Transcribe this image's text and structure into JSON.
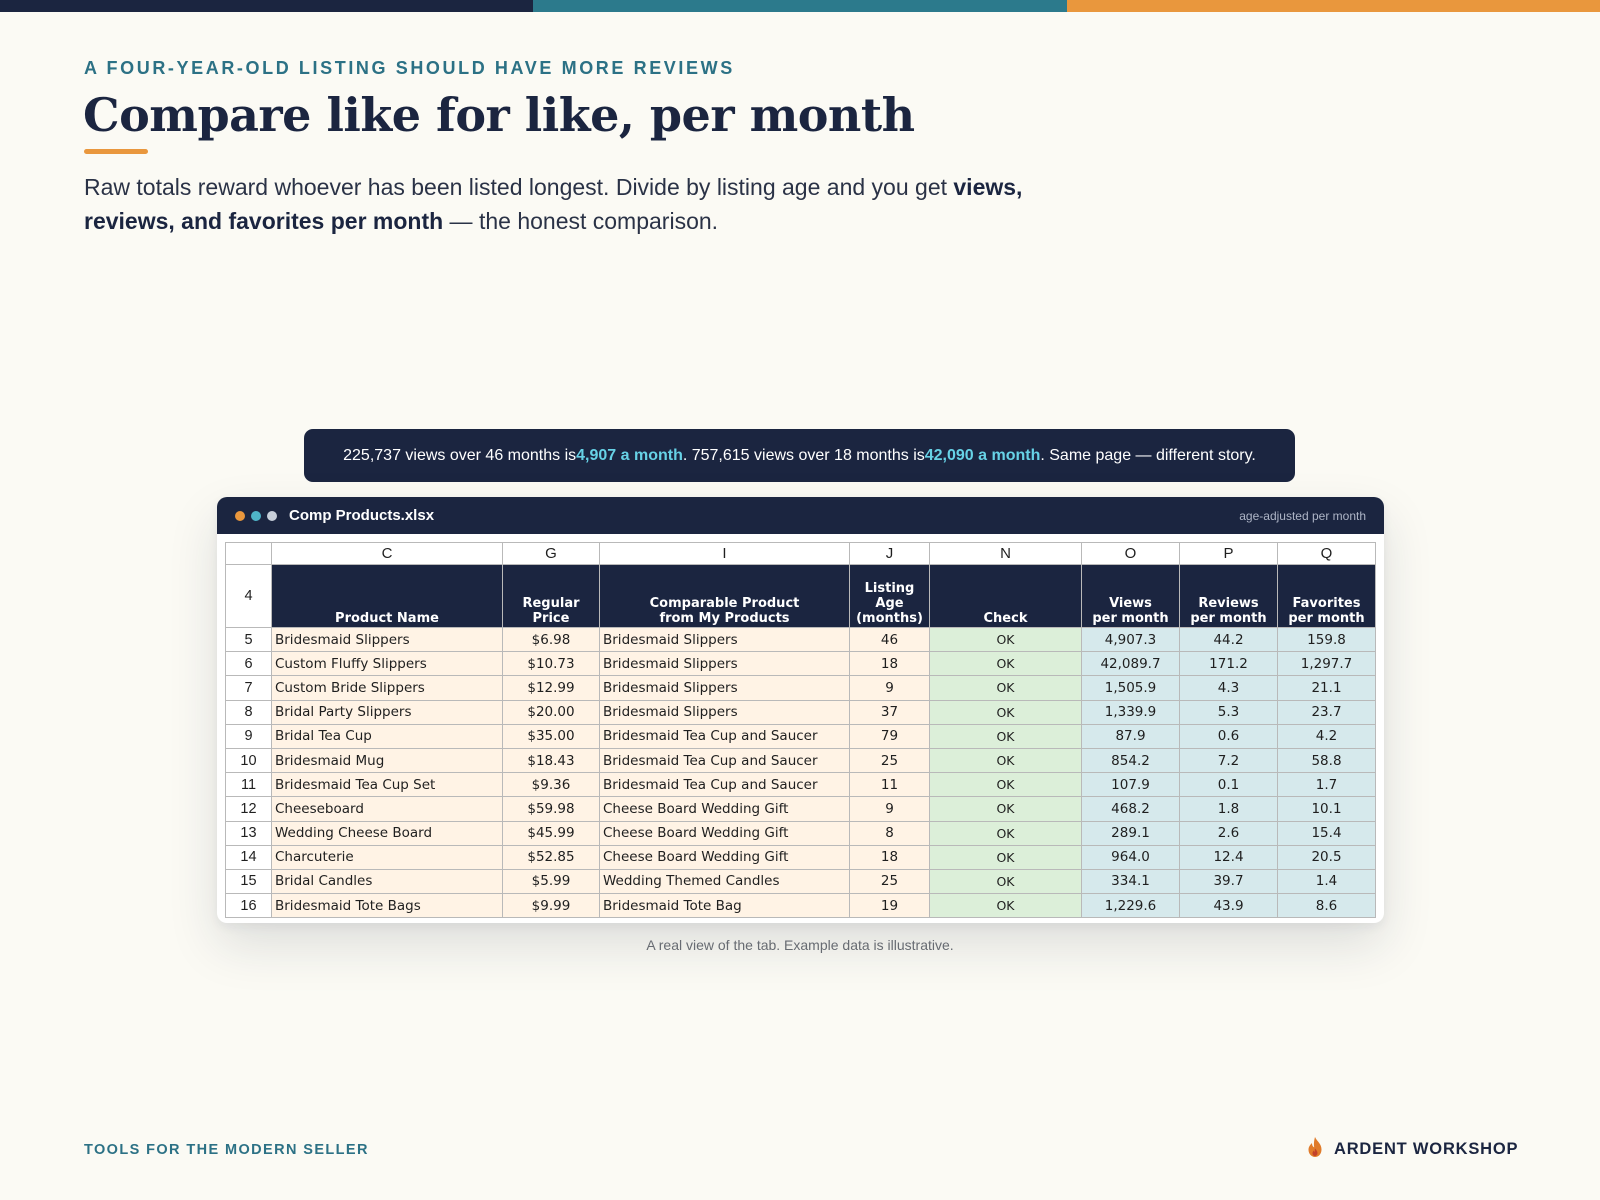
{
  "colors": {
    "navy": "#1b2540",
    "teal": "#2c7a8c",
    "orange": "#e9973d",
    "highlight": "#67d2e6",
    "products_fill": "#fff3e5",
    "check_fill": "#dcefd9",
    "metrics_fill": "#d6e9ec"
  },
  "eyebrow": "A FOUR-YEAR-OLD LISTING SHOULD HAVE MORE REVIEWS",
  "title": "Compare like for like, per month",
  "lead": {
    "part1": "Raw totals reward whoever has been listed longest. Divide by listing age and you get ",
    "bold": "views, reviews, and favorites per month",
    "part2": " — the honest comparison."
  },
  "callout": {
    "t1": "225,737 views over 46 months is ",
    "h1": "4,907 a month",
    "t2": ". 757,615 views over 18 months is ",
    "h2": "42,090 a month",
    "t3": ". Same page — different story."
  },
  "window": {
    "dot_colors": [
      "#e9973d",
      "#4fb5c8",
      "#c8cfda"
    ],
    "filename": "Comp Products.xlsx",
    "badge": "age-adjusted per month"
  },
  "sheet": {
    "header_row_number": "4",
    "column_letters": [
      "C",
      "G",
      "I",
      "J",
      "N",
      "O",
      "P",
      "Q"
    ],
    "headers": [
      "Product Name",
      "Regular\nPrice",
      "Comparable Product\nfrom My Products",
      "Listing Age\n(months)",
      "Check",
      "Views\nper month",
      "Reviews\nper month",
      "Favorites\nper month"
    ],
    "rows": [
      {
        "n": "5",
        "product": "Bridesmaid Slippers",
        "price": "$6.98",
        "comparable": "Bridesmaid Slippers",
        "age": "46",
        "check": "OK",
        "views": "4,907.3",
        "reviews": "44.2",
        "favorites": "159.8"
      },
      {
        "n": "6",
        "product": "Custom Fluffy Slippers",
        "price": "$10.73",
        "comparable": "Bridesmaid Slippers",
        "age": "18",
        "check": "OK",
        "views": "42,089.7",
        "reviews": "171.2",
        "favorites": "1,297.7"
      },
      {
        "n": "7",
        "product": "Custom Bride Slippers",
        "price": "$12.99",
        "comparable": "Bridesmaid Slippers",
        "age": "9",
        "check": "OK",
        "views": "1,505.9",
        "reviews": "4.3",
        "favorites": "21.1"
      },
      {
        "n": "8",
        "product": "Bridal Party Slippers",
        "price": "$20.00",
        "comparable": "Bridesmaid Slippers",
        "age": "37",
        "check": "OK",
        "views": "1,339.9",
        "reviews": "5.3",
        "favorites": "23.7"
      },
      {
        "n": "9",
        "product": "Bridal Tea Cup",
        "price": "$35.00",
        "comparable": "Bridesmaid Tea Cup and Saucer",
        "age": "79",
        "check": "OK",
        "views": "87.9",
        "reviews": "0.6",
        "favorites": "4.2"
      },
      {
        "n": "10",
        "product": "Bridesmaid Mug",
        "price": "$18.43",
        "comparable": "Bridesmaid Tea Cup and Saucer",
        "age": "25",
        "check": "OK",
        "views": "854.2",
        "reviews": "7.2",
        "favorites": "58.8"
      },
      {
        "n": "11",
        "product": "Bridesmaid Tea Cup Set",
        "price": "$9.36",
        "comparable": "Bridesmaid Tea Cup and Saucer",
        "age": "11",
        "check": "OK",
        "views": "107.9",
        "reviews": "0.1",
        "favorites": "1.7"
      },
      {
        "n": "12",
        "product": "Cheeseboard",
        "price": "$59.98",
        "comparable": "Cheese Board Wedding Gift",
        "age": "9",
        "check": "OK",
        "views": "468.2",
        "reviews": "1.8",
        "favorites": "10.1"
      },
      {
        "n": "13",
        "product": "Wedding Cheese Board",
        "price": "$45.99",
        "comparable": "Cheese Board Wedding Gift",
        "age": "8",
        "check": "OK",
        "views": "289.1",
        "reviews": "2.6",
        "favorites": "15.4"
      },
      {
        "n": "14",
        "product": "Charcuterie",
        "price": "$52.85",
        "comparable": "Cheese Board Wedding Gift",
        "age": "18",
        "check": "OK",
        "views": "964.0",
        "reviews": "12.4",
        "favorites": "20.5"
      },
      {
        "n": "15",
        "product": "Bridal Candles",
        "price": "$5.99",
        "comparable": "Wedding Themed Candles",
        "age": "25",
        "check": "OK",
        "views": "334.1",
        "reviews": "39.7",
        "favorites": "1.4"
      },
      {
        "n": "16",
        "product": "Bridesmaid Tote Bags",
        "price": "$9.99",
        "comparable": "Bridesmaid Tote Bag",
        "age": "19",
        "check": "OK",
        "views": "1,229.6",
        "reviews": "43.9",
        "favorites": "8.6"
      }
    ]
  },
  "caption": "A real view of the tab. Example data is illustrative.",
  "footer": {
    "left": "TOOLS FOR THE MODERN SELLER",
    "brand": "ARDENT WORKSHOP",
    "logo_icon": "flame-icon"
  }
}
